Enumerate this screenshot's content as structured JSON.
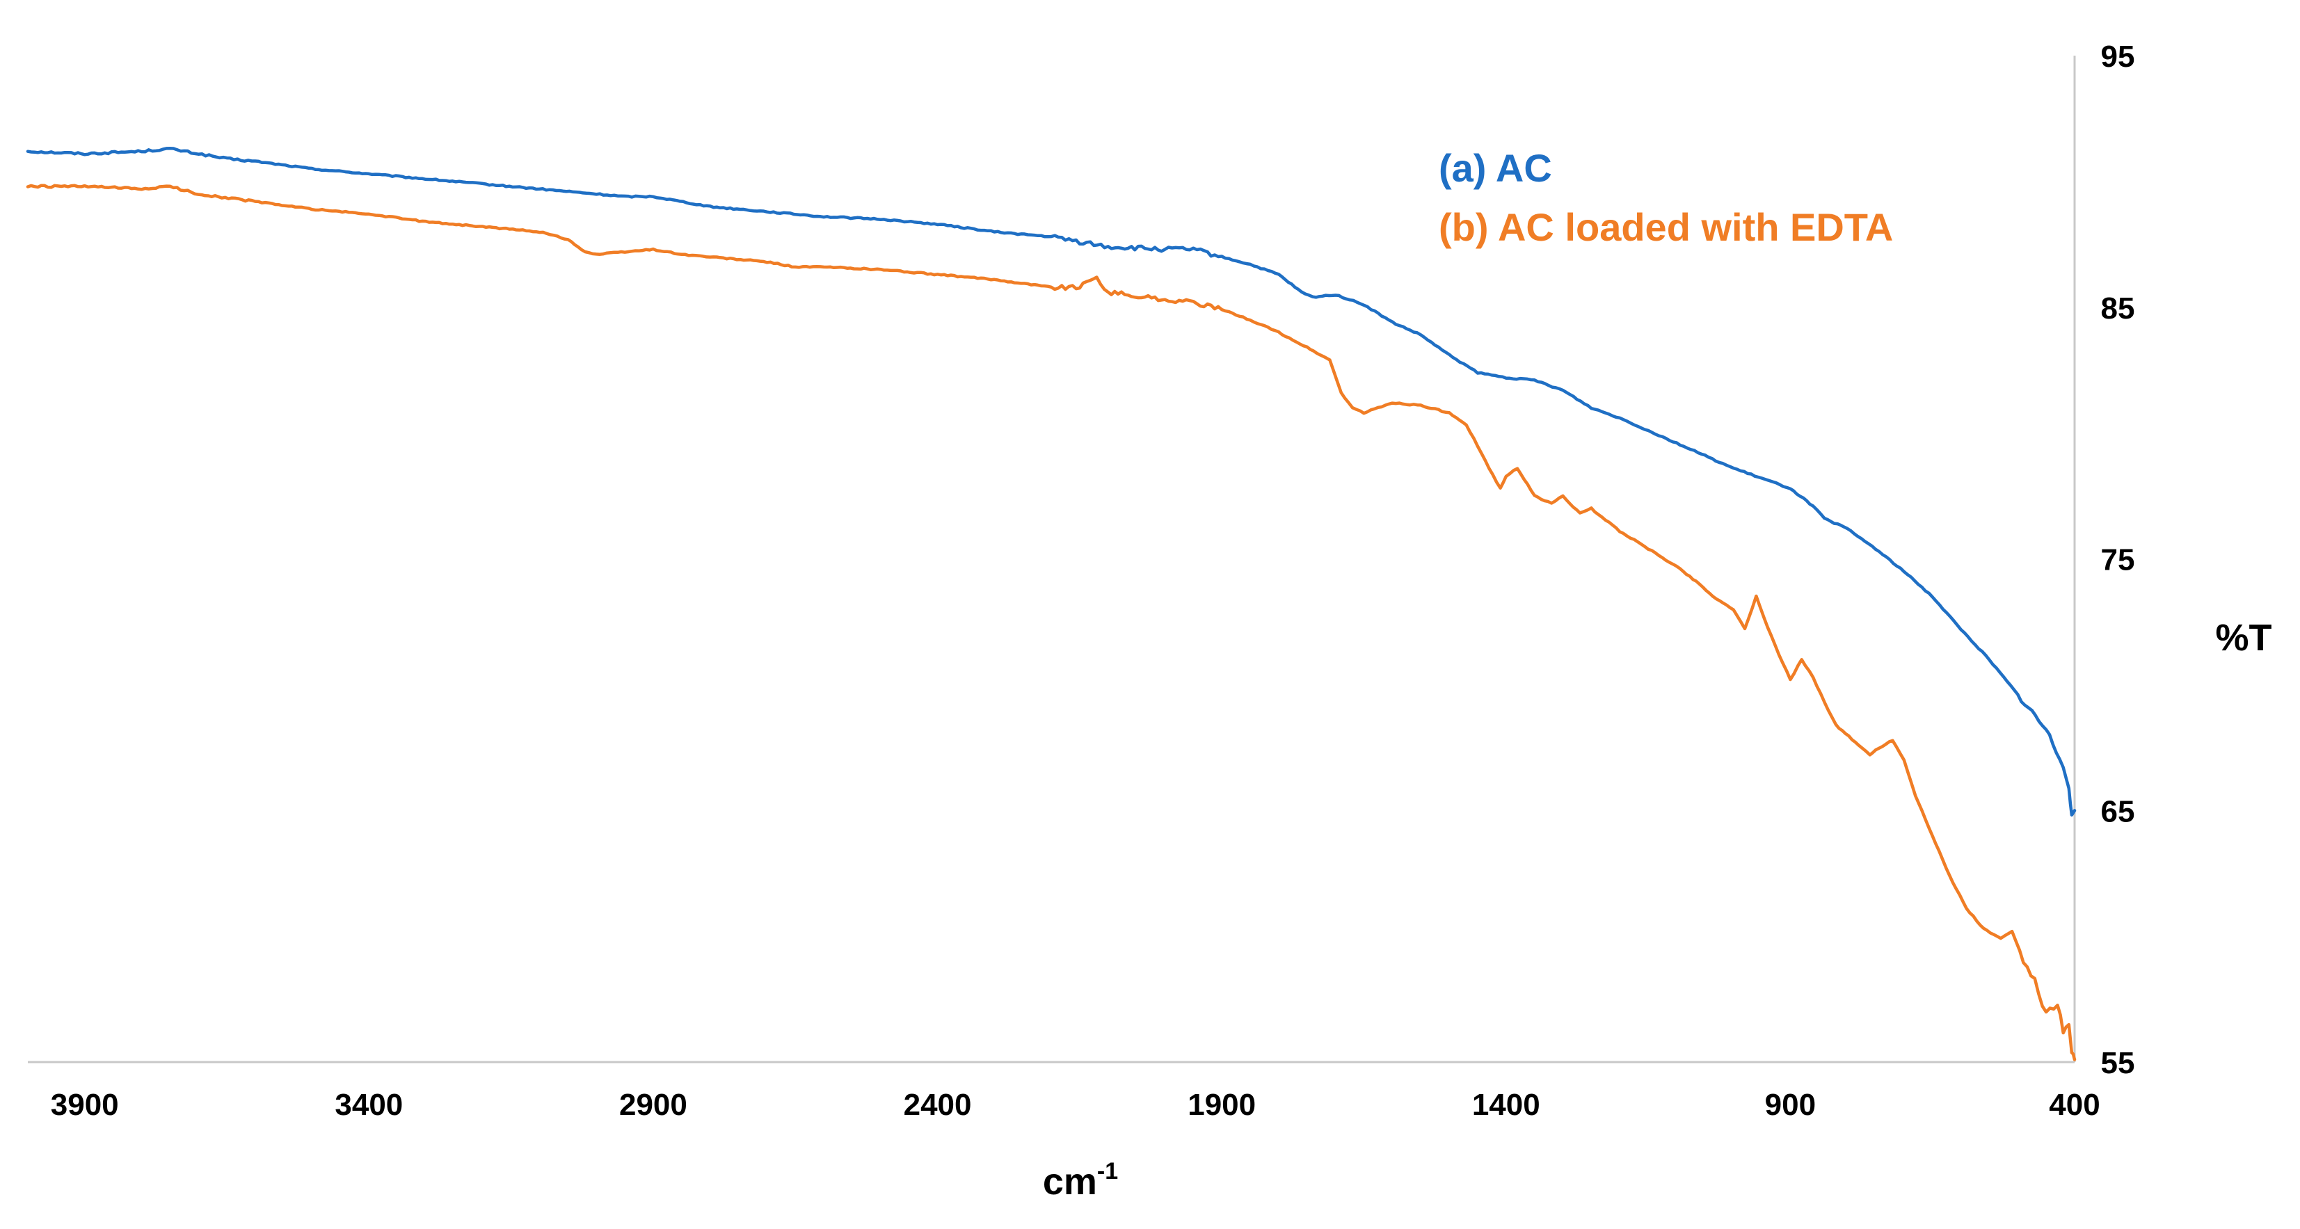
{
  "chart_data": {
    "type": "line",
    "title": "",
    "xlabel": "cm",
    "xlabel_superscript": "-1",
    "ylabel": "%T",
    "xlim": [
      4000,
      400
    ],
    "ylim": [
      55,
      95
    ],
    "x_ticks": [
      3900,
      3400,
      2900,
      2400,
      1900,
      1400,
      900,
      400
    ],
    "x_tick_labels": [
      "3900",
      "3400",
      "2900",
      "2400",
      "1900",
      "1400",
      "900",
      "400"
    ],
    "y_ticks": [
      95,
      85,
      75,
      65,
      55
    ],
    "y_tick_labels": [
      "95",
      "85",
      "75",
      "65",
      "55"
    ],
    "y_axis_side": "right",
    "grid": false,
    "legend_position": "top-right",
    "series": [
      {
        "name": "(a) AC",
        "color": "#1f6fc4",
        "points": [
          [
            4000,
            91.2
          ],
          [
            3900,
            91.1
          ],
          [
            3800,
            91.2
          ],
          [
            3750,
            91.3
          ],
          [
            3700,
            91.1
          ],
          [
            3650,
            90.9
          ],
          [
            3600,
            90.8
          ],
          [
            3500,
            90.5
          ],
          [
            3400,
            90.3
          ],
          [
            3300,
            90.1
          ],
          [
            3200,
            89.9
          ],
          [
            3100,
            89.7
          ],
          [
            3000,
            89.5
          ],
          [
            2950,
            89.4
          ],
          [
            2900,
            89.4
          ],
          [
            2800,
            89.0
          ],
          [
            2700,
            88.8
          ],
          [
            2600,
            88.6
          ],
          [
            2500,
            88.5
          ],
          [
            2400,
            88.3
          ],
          [
            2300,
            88.0
          ],
          [
            2200,
            87.8
          ],
          [
            2150,
            87.6
          ],
          [
            2100,
            87.4
          ],
          [
            2000,
            87.3
          ],
          [
            1950,
            87.3
          ],
          [
            1900,
            87.0
          ],
          [
            1850,
            86.7
          ],
          [
            1800,
            86.3
          ],
          [
            1760,
            85.6
          ],
          [
            1740,
            85.4
          ],
          [
            1700,
            85.5
          ],
          [
            1650,
            85.1
          ],
          [
            1600,
            84.4
          ],
          [
            1550,
            83.9
          ],
          [
            1500,
            83.1
          ],
          [
            1450,
            82.4
          ],
          [
            1400,
            82.2
          ],
          [
            1350,
            82.1
          ],
          [
            1300,
            81.7
          ],
          [
            1250,
            81.0
          ],
          [
            1200,
            80.6
          ],
          [
            1150,
            80.1
          ],
          [
            1100,
            79.6
          ],
          [
            1050,
            79.1
          ],
          [
            1000,
            78.6
          ],
          [
            950,
            78.2
          ],
          [
            900,
            77.8
          ],
          [
            860,
            77.1
          ],
          [
            840,
            76.6
          ],
          [
            800,
            76.2
          ],
          [
            750,
            75.4
          ],
          [
            700,
            74.5
          ],
          [
            650,
            73.5
          ],
          [
            600,
            72.2
          ],
          [
            550,
            71.0
          ],
          [
            500,
            69.6
          ],
          [
            450,
            68.2
          ],
          [
            420,
            66.8
          ],
          [
            410,
            66.0
          ],
          [
            405,
            64.8
          ],
          [
            400,
            65.0
          ]
        ]
      },
      {
        "name": "(b) AC loaded with EDTA",
        "color": "#f07d25",
        "points": [
          [
            4000,
            89.8
          ],
          [
            3900,
            89.8
          ],
          [
            3800,
            89.7
          ],
          [
            3750,
            89.8
          ],
          [
            3700,
            89.5
          ],
          [
            3600,
            89.2
          ],
          [
            3500,
            88.9
          ],
          [
            3400,
            88.7
          ],
          [
            3300,
            88.4
          ],
          [
            3200,
            88.2
          ],
          [
            3100,
            88.0
          ],
          [
            3050,
            87.7
          ],
          [
            3020,
            87.2
          ],
          [
            3000,
            87.1
          ],
          [
            2950,
            87.2
          ],
          [
            2900,
            87.3
          ],
          [
            2850,
            87.1
          ],
          [
            2800,
            87.0
          ],
          [
            2700,
            86.8
          ],
          [
            2650,
            86.6
          ],
          [
            2600,
            86.6
          ],
          [
            2500,
            86.5
          ],
          [
            2400,
            86.3
          ],
          [
            2300,
            86.1
          ],
          [
            2200,
            85.8
          ],
          [
            2150,
            85.8
          ],
          [
            2120,
            86.2
          ],
          [
            2100,
            85.6
          ],
          [
            2000,
            85.3
          ],
          [
            1950,
            85.2
          ],
          [
            1900,
            84.9
          ],
          [
            1850,
            84.5
          ],
          [
            1800,
            84.0
          ],
          [
            1750,
            83.4
          ],
          [
            1710,
            82.9
          ],
          [
            1690,
            81.6
          ],
          [
            1670,
            81.0
          ],
          [
            1650,
            80.8
          ],
          [
            1600,
            81.2
          ],
          [
            1550,
            81.1
          ],
          [
            1500,
            80.8
          ],
          [
            1470,
            80.3
          ],
          [
            1450,
            79.5
          ],
          [
            1430,
            78.6
          ],
          [
            1410,
            77.8
          ],
          [
            1400,
            78.3
          ],
          [
            1380,
            78.6
          ],
          [
            1350,
            77.5
          ],
          [
            1320,
            77.2
          ],
          [
            1300,
            77.5
          ],
          [
            1270,
            76.8
          ],
          [
            1250,
            77.0
          ],
          [
            1200,
            76.1
          ],
          [
            1150,
            75.4
          ],
          [
            1100,
            74.7
          ],
          [
            1060,
            74.0
          ],
          [
            1030,
            73.4
          ],
          [
            1000,
            73.0
          ],
          [
            980,
            72.2
          ],
          [
            960,
            73.5
          ],
          [
            940,
            72.3
          ],
          [
            920,
            71.2
          ],
          [
            900,
            70.2
          ],
          [
            880,
            71.0
          ],
          [
            860,
            70.3
          ],
          [
            840,
            69.3
          ],
          [
            820,
            68.4
          ],
          [
            780,
            67.6
          ],
          [
            760,
            67.2
          ],
          [
            750,
            67.4
          ],
          [
            720,
            67.8
          ],
          [
            700,
            67.0
          ],
          [
            680,
            65.6
          ],
          [
            650,
            64.0
          ],
          [
            620,
            62.4
          ],
          [
            590,
            61.1
          ],
          [
            560,
            60.3
          ],
          [
            530,
            59.9
          ],
          [
            510,
            60.2
          ],
          [
            490,
            59.0
          ],
          [
            470,
            58.2
          ],
          [
            450,
            56.9
          ],
          [
            430,
            57.3
          ],
          [
            420,
            56.2
          ],
          [
            410,
            56.4
          ],
          [
            405,
            55.3
          ],
          [
            400,
            55.1
          ]
        ]
      }
    ]
  }
}
